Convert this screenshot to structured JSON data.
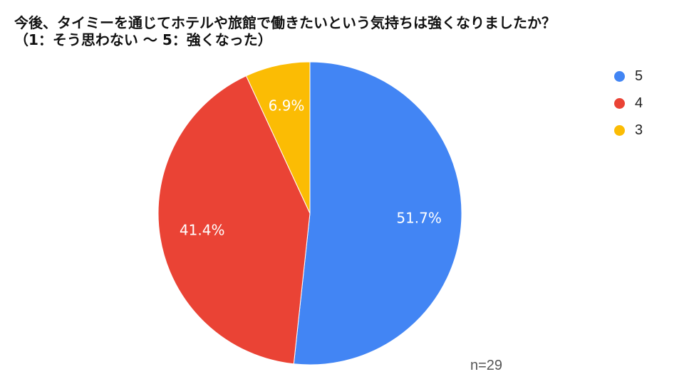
{
  "chart_data": {
    "type": "pie",
    "title_lines": [
      "今後、タイミーを通じてホテルや旅館で働きたいという気持ちは強くなりましたか？",
      "（1：そう思わない 〜 5：強くなった）"
    ],
    "slices": [
      {
        "name": "5",
        "value": 51.7,
        "label": "51.7%",
        "color": "#4285F4"
      },
      {
        "name": "4",
        "value": 41.4,
        "label": "41.4%",
        "color": "#EA4335"
      },
      {
        "name": "3",
        "value": 6.9,
        "label": "6.9%",
        "color": "#FBBC04"
      }
    ],
    "legend_position": "right",
    "note": "n=29"
  }
}
